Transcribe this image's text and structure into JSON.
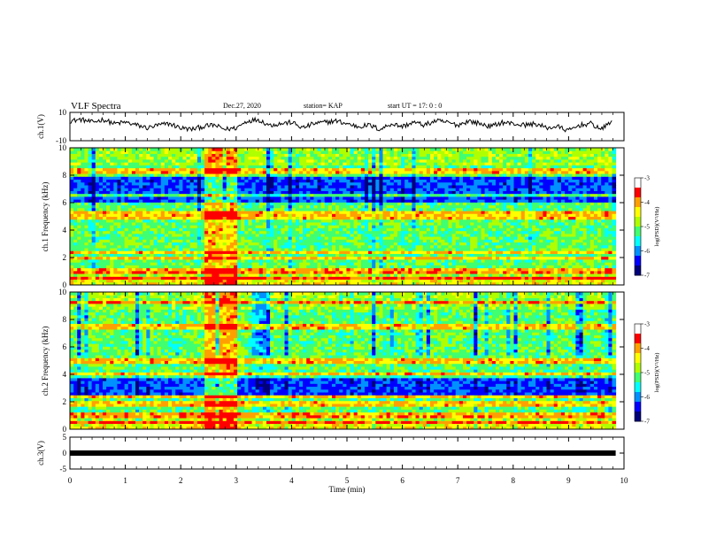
{
  "header": {
    "title": "VLF Spectra",
    "date": "Dec.27, 2020",
    "station": "station= KAP",
    "start": "start  UT  =   17: 0   : 0"
  },
  "colors": {
    "colormap": [
      "#00007a",
      "#0000ff",
      "#0090ff",
      "#00ffff",
      "#40ff70",
      "#b0ff00",
      "#ffff00",
      "#ffa000",
      "#ff0000",
      "#ffffff"
    ],
    "trace": "#000000"
  },
  "chart_data": [
    {
      "type": "line",
      "title": "",
      "ylabel": "ch.1(V)",
      "ylim": [
        -10,
        10
      ],
      "yticks": [
        "10",
        "-10"
      ],
      "xlim": [
        0,
        10
      ],
      "series": [
        {
          "x": [
            0,
            0.2,
            0.4,
            0.6,
            0.8,
            1.0,
            1.2,
            1.4,
            1.6,
            1.8,
            2.0,
            2.2,
            2.4,
            2.6,
            2.8,
            3.0,
            3.2,
            3.4,
            3.6,
            3.8,
            4.0,
            4.2,
            4.4,
            4.6,
            4.8,
            5.0,
            5.2,
            5.4,
            5.6,
            5.8,
            6.0,
            6.2,
            6.4,
            6.6,
            6.8,
            7.0,
            7.2,
            7.4,
            7.6,
            7.8,
            8.0,
            8.2,
            8.4,
            8.6,
            8.8,
            9.0,
            9.2,
            9.4,
            9.6,
            9.8
          ],
          "values": [
            4,
            5,
            3,
            5,
            2,
            3,
            1,
            -1,
            1,
            2,
            -1,
            -2,
            0,
            1,
            -2,
            -1,
            4,
            5,
            1,
            2,
            3,
            -1,
            2,
            3,
            4,
            2,
            0,
            1,
            -2,
            2,
            0,
            3,
            1,
            4,
            3,
            1,
            4,
            2,
            0,
            3,
            2,
            1,
            2,
            -1,
            0,
            -3,
            1,
            2,
            -2,
            5
          ]
        }
      ]
    },
    {
      "type": "heatmap",
      "title": "",
      "ylabel": "ch.1  Frequency (kHz)",
      "ylim": [
        0,
        10
      ],
      "yticks": [
        "0",
        "2",
        "4",
        "6",
        "8",
        "10"
      ],
      "xlim": [
        0,
        9.85
      ],
      "colorbar": {
        "label": "log(PSD)(V²/Hz)",
        "range": [
          -7,
          -3
        ],
        "ticks": [
          "-3",
          "-4",
          "-5",
          "-6",
          "-7"
        ]
      },
      "features": {
        "bright_band_min": [
          2.4,
          3.0
        ],
        "strong_lines_khz": [
          0.5,
          1.0,
          2.0,
          2.4,
          4.9,
          5.2,
          6.5,
          8.3
        ],
        "weak_band_khz": [
          6.0,
          8.0
        ]
      }
    },
    {
      "type": "heatmap",
      "title": "",
      "ylabel": "ch.2  Frequency (kHz)",
      "ylim": [
        0,
        10
      ],
      "yticks": [
        "0",
        "2",
        "4",
        "6",
        "8",
        "10"
      ],
      "xlim": [
        0,
        9.85
      ],
      "colorbar": {
        "label": "log(PSD)(V²/Hz)",
        "range": [
          -7,
          -3
        ],
        "ticks": [
          "-3",
          "-4",
          "-5",
          "-6",
          "-7"
        ]
      },
      "features": {
        "bright_band_min": [
          2.4,
          3.0
        ],
        "strong_lines_khz": [
          0.5,
          1.0,
          1.9,
          2.4,
          4.0,
          5.0,
          7.5,
          9.3
        ],
        "weak_band_khz": [
          2.5,
          4.0
        ]
      }
    },
    {
      "type": "line",
      "title": "",
      "ylabel": "ch.3(V)",
      "ylim": [
        -5,
        5
      ],
      "yticks": [
        "5",
        "0",
        "-5"
      ],
      "xlim": [
        0,
        10
      ],
      "xlabel": "Time (min)",
      "xticks": [
        "0",
        "1",
        "2",
        "3",
        "4",
        "5",
        "6",
        "7",
        "8",
        "9",
        "10"
      ],
      "series": [
        {
          "x": [
            0,
            9.85
          ],
          "values": [
            0,
            0
          ]
        }
      ]
    }
  ]
}
